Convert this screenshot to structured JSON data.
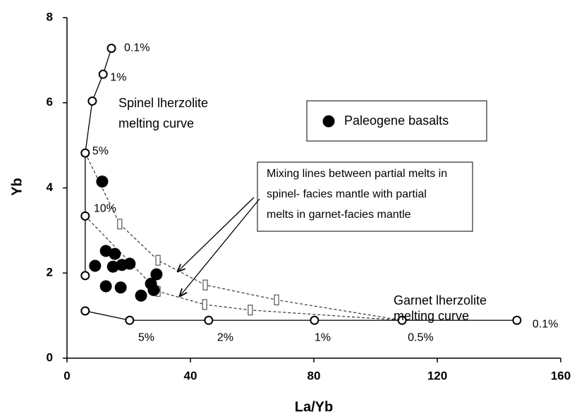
{
  "chart_data": {
    "type": "scatter",
    "xlabel": "La/Yb",
    "ylabel": "Yb",
    "xlim": [
      0,
      160
    ],
    "ylim": [
      0,
      8
    ],
    "xticks": [
      0,
      40,
      80,
      120,
      160
    ],
    "yticks": [
      0,
      2,
      4,
      6,
      8
    ],
    "legend": {
      "name": "Paleogene basalts"
    },
    "curves": [
      {
        "label_lines": [
          "Spinel lherzolite",
          "melting curve"
        ],
        "x": [
          14.4,
          11.7,
          8.2,
          5.9,
          5.9,
          5.9
        ],
        "y": [
          7.28,
          6.67,
          6.04,
          4.82,
          3.34,
          1.94
        ],
        "point_labels": [
          "0.1%",
          "1%",
          null,
          "5%",
          "10%",
          null
        ]
      },
      {
        "label_lines": [
          "Garnet lherzolite",
          "melting curve"
        ],
        "x": [
          5.9,
          20.3,
          45.9,
          80.2,
          108.6,
          145.8
        ],
        "y": [
          1.11,
          0.89,
          0.89,
          0.89,
          0.89,
          0.89
        ],
        "point_labels": [
          null,
          "5%",
          "2%",
          "1%",
          "0.5%",
          "0.1%"
        ]
      }
    ],
    "mixing_label_lines": [
      "Mixing lines between partial melts in",
      "spinel- facies mantle with partial",
      "melts in garnet-facies mantle"
    ],
    "mixing_lines": [
      {
        "x": [
          5.9,
          17.1,
          29.5,
          44.8,
          67.9,
          108.6
        ],
        "y": [
          4.82,
          3.15,
          2.3,
          1.72,
          1.37,
          0.89
        ]
      },
      {
        "x": [
          5.9,
          29.5,
          44.6,
          59.4,
          108.6
        ],
        "y": [
          3.34,
          1.57,
          1.26,
          1.13,
          0.89
        ]
      }
    ],
    "series": [
      {
        "name": "Paleogene basalts",
        "color": "#000000",
        "x": [
          11.4,
          9.1,
          12.6,
          15.5,
          14.9,
          17.8,
          20.3,
          12.6,
          17.4,
          24.0,
          27.2,
          28.1,
          29.0
        ],
        "y": [
          4.15,
          2.17,
          2.52,
          2.45,
          2.15,
          2.19,
          2.22,
          1.69,
          1.66,
          1.47,
          1.75,
          1.6,
          1.97
        ]
      }
    ]
  }
}
